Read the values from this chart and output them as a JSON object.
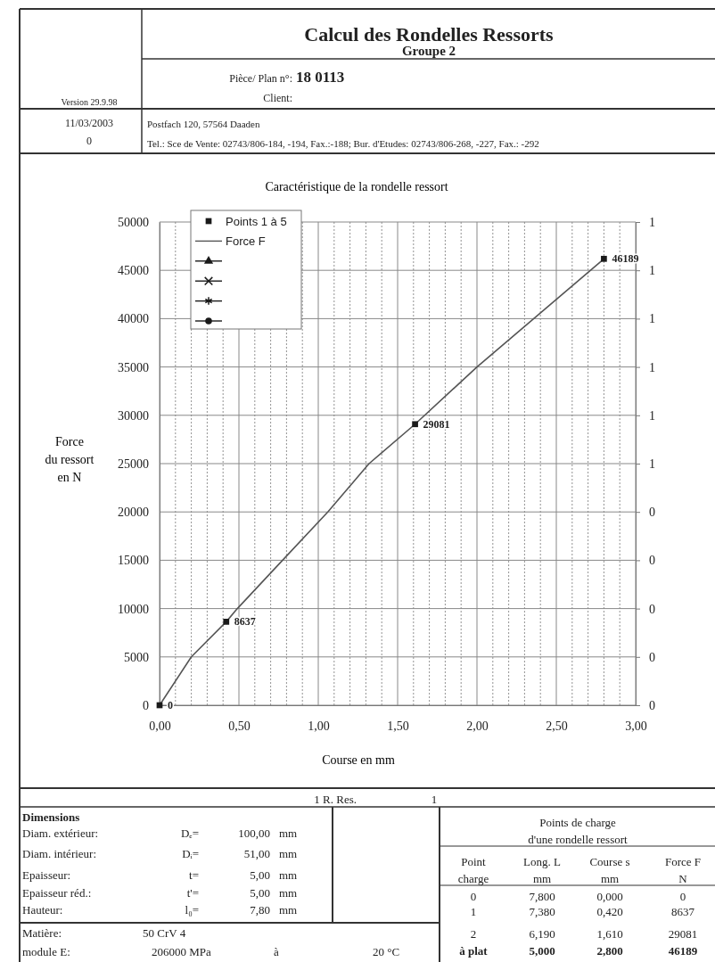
{
  "chart_data": {
    "type": "scatter",
    "title": "Caractéristique de la rondelle ressort",
    "xlabel": "Course en  mm",
    "ylabel": "Force du ressort en N",
    "xlim": [
      0,
      3
    ],
    "xticks": [
      {
        "value": 0,
        "label": "0,00"
      },
      {
        "value": 0.5,
        "label": "0,50"
      },
      {
        "value": 1,
        "label": "1,00"
      },
      {
        "value": 1.5,
        "label": "1,50"
      },
      {
        "value": 2,
        "label": "2,00"
      },
      {
        "value": 2.5,
        "label": "2,50"
      },
      {
        "value": 3,
        "label": "3,00"
      }
    ],
    "ylim": [
      0,
      50000
    ],
    "yticks": [
      0,
      5000,
      10000,
      15000,
      20000,
      25000,
      30000,
      35000,
      40000,
      45000,
      50000
    ],
    "y2lim": [
      0,
      1
    ],
    "y2ticks": [
      {
        "value": 0,
        "label": "0"
      },
      {
        "value": 0.1,
        "label": "0"
      },
      {
        "value": 0.2,
        "label": "0"
      },
      {
        "value": 0.3,
        "label": "0"
      },
      {
        "value": 0.4,
        "label": "0"
      },
      {
        "value": 0.5,
        "label": "1"
      },
      {
        "value": 0.6,
        "label": "1"
      },
      {
        "value": 0.7,
        "label": "1"
      },
      {
        "value": 0.8,
        "label": "1"
      },
      {
        "value": 0.9,
        "label": "1"
      },
      {
        "value": 1,
        "label": "1"
      }
    ],
    "grid": true,
    "legend": "top left",
    "series": [
      {
        "name": "Points 1 à 5",
        "type": "scatter",
        "marker": "square",
        "color": "#1a1a1a",
        "x": [
          0,
          0.42,
          1.61,
          2.8
        ],
        "values": [
          0,
          8637,
          29081,
          46189
        ],
        "data_labels": true
      },
      {
        "name": "Force F",
        "type": "line",
        "marker": "none",
        "color": "#555555",
        "x": [
          0,
          0.2,
          0.42,
          0.49,
          0.775,
          1.06,
          1.32,
          1.61,
          2,
          2.8
        ],
        "values": [
          0,
          5000,
          8637,
          10000,
          15000,
          20000,
          25000,
          29081,
          35000,
          46189
        ]
      },
      {
        "type": "line",
        "marker": "triangle",
        "color": "#1a1a1a"
      },
      {
        "type": "line",
        "marker": "cross",
        "color": "#1a1a1a"
      },
      {
        "type": "line",
        "marker": "star",
        "color": "#1a1a1a"
      },
      {
        "type": "line",
        "marker": "circle",
        "color": "#1a1a1a"
      }
    ],
    "annotations": [
      "Calcul des Rondelles Ressorts",
      "Groupe 2",
      "Pièce/ Plan n°:",
      "18 0113",
      "Client:",
      "Version 29.9.98",
      "11/03/2003",
      "0",
      "Postfach 120, 57564 Daaden",
      "Tel.: Sce de Vente: 02743/806-184, -194, Fax.:-188; Bur. d'Etudes: 02743/806-268, -227, Fax.: -292",
      "1 R. Res.",
      "1",
      "Dimensions",
      "Diam. extérieur:",
      "Dₑ=",
      "100,00",
      "mm",
      "Diam. intérieur:",
      "Dᵢ=",
      "51,00",
      "mm",
      "Epaisseur:",
      "t=",
      "5,00",
      "mm",
      "Epaisseur réd.:",
      "t'=",
      "5,00",
      "mm",
      "Hauteur:",
      "l₀=",
      "7,80",
      "mm",
      "Matière:",
      "50 CrV 4",
      "module E:",
      "206000 MPa",
      "à",
      "20 °C",
      "Points de charge",
      "d'une rondelle ressort",
      "Point",
      "Long. L",
      "Course s",
      "Force F",
      "charge",
      "mm",
      "mm",
      "N",
      "0",
      "7,800",
      "0,000",
      "0",
      "1",
      "7,380",
      "0,420",
      "8637",
      "2",
      "6,190",
      "1,610",
      "29081",
      "à plat",
      "5,000",
      "2,800",
      "46189"
    ]
  }
}
